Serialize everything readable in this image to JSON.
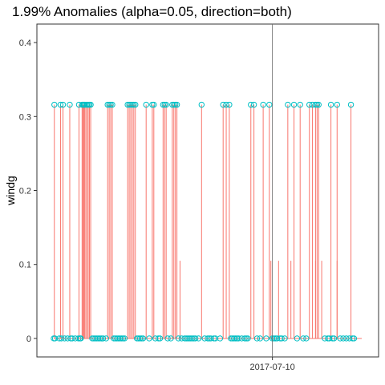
{
  "chart_data": {
    "type": "line",
    "title": "1.99% Anomalies (alpha=0.05, direction=both)",
    "xlabel": "",
    "ylabel": "windg",
    "ylim": [
      -0.025,
      0.425
    ],
    "yticks": [
      "0",
      "0.1",
      "0.2",
      "0.3",
      "0.4"
    ],
    "ytick_values": [
      0,
      0.1,
      0.2,
      0.3,
      0.4
    ],
    "xlim": [
      0,
      1000
    ],
    "xticks": [
      {
        "label": "2017-07-10",
        "x": 710
      }
    ],
    "grid": false,
    "legend": "none",
    "colors": {
      "line": "#f8766d",
      "points": "#00bfc4",
      "frame": "#333333",
      "refline": "#666666"
    },
    "series": [
      {
        "values_high": [
          0.316,
          0.316,
          0.316,
          0.316,
          0.316,
          0.316,
          0.316,
          0.316,
          0.316,
          0.316,
          0.316,
          0.316,
          0.316,
          0.316,
          0.316,
          0.316,
          0.316,
          0.316,
          0.316,
          0.316,
          0.316,
          0.316,
          0.316,
          0.316,
          0.316,
          0.316,
          0.316,
          0.316,
          0.316,
          0.316,
          0.316,
          0.316,
          0.316,
          0.316,
          0.316,
          0.316,
          0.316,
          0.316,
          0.316,
          0.316,
          0.316,
          0.316,
          0.316,
          0.316,
          0.316,
          0.316,
          0.316,
          0.316,
          0.316,
          0.316,
          0.316,
          0.316,
          0.316
        ],
        "x_high": [
          2,
          22,
          30,
          52,
          82,
          92,
          95,
          98,
          100,
          104,
          108,
          112,
          116,
          120,
          175,
          180,
          185,
          190,
          240,
          245,
          250,
          255,
          260,
          265,
          300,
          320,
          325,
          355,
          360,
          365,
          385,
          390,
          395,
          400,
          480,
          550,
          560,
          570,
          640,
          650,
          680,
          700,
          760,
          780,
          800,
          830,
          840,
          850,
          855,
          860,
          900,
          920,
          965
        ],
        "x_mid": [
          410,
          705,
          730,
          770,
          850,
          870,
          920
        ],
        "value_mid": 0.105,
        "x_zero": [
          0,
          4,
          18,
          25,
          35,
          45,
          55,
          60,
          70,
          80,
          85,
          88,
          125,
          130,
          135,
          140,
          145,
          150,
          155,
          160,
          170,
          195,
          200,
          205,
          210,
          215,
          220,
          225,
          230,
          270,
          275,
          280,
          285,
          290,
          310,
          330,
          340,
          345,
          370,
          380,
          405,
          415,
          425,
          430,
          435,
          440,
          445,
          450,
          455,
          460,
          470,
          490,
          500,
          505,
          510,
          520,
          525,
          540,
          575,
          580,
          585,
          590,
          595,
          600,
          610,
          620,
          625,
          630,
          660,
          670,
          690,
          710,
          715,
          720,
          725,
          735,
          740,
          750,
          790,
          810,
          820,
          880,
          890,
          895,
          905,
          910,
          930,
          940,
          950,
          960,
          970,
          975
        ],
        "value_zero": 0
      }
    ]
  }
}
